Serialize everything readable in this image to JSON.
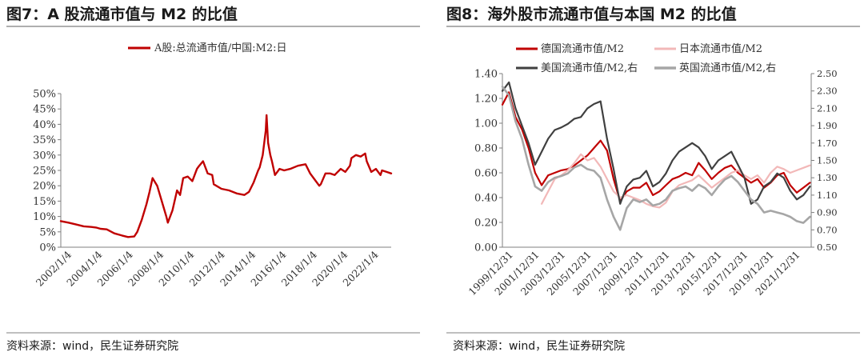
{
  "charts": [
    {
      "panel_title": "图7：A 股流通市值与 M2 的比值",
      "source": "资料来源：wind，民生证券研究院",
      "chart_data": {
        "type": "line",
        "title": "",
        "xlabel": "",
        "ylabel": "",
        "ylim": [
          0,
          0.5
        ],
        "y_ticks": [
          "0%",
          "5%",
          "10%",
          "15%",
          "20%",
          "25%",
          "30%",
          "35%",
          "40%",
          "45%",
          "50%"
        ],
        "x_ticks": [
          "2002/1/4",
          "2004/1/4",
          "2006/1/4",
          "2008/1/4",
          "2010/1/4",
          "2012/1/4",
          "2014/1/4",
          "2016/1/4",
          "2018/1/4",
          "2020/1/4",
          "2022/1/4"
        ],
        "xlim": [
          2002.0,
          2023.6
        ],
        "legend": "top",
        "grid": false,
        "series": [
          {
            "name": "A股:总流通市值/中国:M2:日",
            "color": "#c00000",
            "x": [
              2002.0,
              2002.5,
              2003.0,
              2003.5,
              2004.0,
              2004.3,
              2004.6,
              2005.0,
              2005.5,
              2006.0,
              2006.4,
              2006.8,
              2007.0,
              2007.3,
              2007.6,
              2007.8,
              2008.0,
              2008.3,
              2008.6,
              2008.9,
              2009.0,
              2009.3,
              2009.6,
              2009.8,
              2010.0,
              2010.3,
              2010.6,
              2010.9,
              2011.0,
              2011.3,
              2011.6,
              2011.9,
              2012.0,
              2012.5,
              2013.0,
              2013.5,
              2014.0,
              2014.3,
              2014.6,
              2014.9,
              2015.0,
              2015.2,
              2015.4,
              2015.45,
              2015.55,
              2015.7,
              2015.8,
              2016.0,
              2016.3,
              2016.6,
              2017.0,
              2017.5,
              2018.0,
              2018.3,
              2018.6,
              2018.9,
              2019.0,
              2019.3,
              2019.6,
              2019.9,
              2020.0,
              2020.3,
              2020.6,
              2020.9,
              2021.0,
              2021.3,
              2021.6,
              2021.9,
              2022.0,
              2022.3,
              2022.6,
              2022.9,
              2023.0,
              2023.3,
              2023.6
            ],
            "values": [
              0.085,
              0.08,
              0.074,
              0.068,
              0.066,
              0.064,
              0.06,
              0.058,
              0.045,
              0.038,
              0.033,
              0.035,
              0.05,
              0.09,
              0.14,
              0.18,
              0.225,
              0.2,
              0.15,
              0.1,
              0.08,
              0.12,
              0.185,
              0.17,
              0.225,
              0.23,
              0.215,
              0.255,
              0.262,
              0.28,
              0.24,
              0.235,
              0.205,
              0.19,
              0.185,
              0.175,
              0.17,
              0.18,
              0.21,
              0.25,
              0.26,
              0.3,
              0.38,
              0.43,
              0.34,
              0.3,
              0.28,
              0.235,
              0.255,
              0.25,
              0.255,
              0.265,
              0.27,
              0.24,
              0.22,
              0.2,
              0.205,
              0.24,
              0.24,
              0.235,
              0.24,
              0.255,
              0.245,
              0.265,
              0.29,
              0.3,
              0.295,
              0.305,
              0.28,
              0.245,
              0.255,
              0.235,
              0.25,
              0.245,
              0.24
            ]
          }
        ]
      }
    },
    {
      "panel_title": "图8：海外股市流通市值与本国 M2 的比值",
      "source": "资料来源：wind，民生证券研究院",
      "chart_data": {
        "type": "line",
        "title": "",
        "xlabel": "",
        "ylabel": "",
        "ylim": [
          0,
          1.4
        ],
        "ylim_right": [
          0.5,
          2.5
        ],
        "y_ticks": [
          "0.00",
          "0.20",
          "0.40",
          "0.60",
          "0.80",
          "1.00",
          "1.20",
          "1.40"
        ],
        "y_ticks_right": [
          "0.50",
          "0.70",
          "0.90",
          "1.10",
          "1.30",
          "1.50",
          "1.70",
          "1.90",
          "2.10",
          "2.30",
          "2.50"
        ],
        "x_ticks": [
          "1999/12/31",
          "2001/12/31",
          "2003/12/31",
          "2005/12/31",
          "2007/12/31",
          "2009/12/31",
          "2011/12/31",
          "2013/12/31",
          "2015/12/31",
          "2017/12/31",
          "2019/12/31",
          "2021/12/31"
        ],
        "xlim": [
          2000.0,
          2023.6
        ],
        "legend": "top",
        "grid": false,
        "series": [
          {
            "name": "德国流通市值/M2",
            "axis": "left",
            "color": "#c00000",
            "width": 2.2,
            "x": [
              2000.0,
              2000.5,
              2001.0,
              2001.5,
              2002.0,
              2002.5,
              2003.0,
              2003.5,
              2004.0,
              2004.5,
              2005.0,
              2005.5,
              2006.0,
              2006.5,
              2007.0,
              2007.5,
              2008.0,
              2008.5,
              2009.0,
              2009.5,
              2010.0,
              2010.5,
              2011.0,
              2011.5,
              2012.0,
              2012.5,
              2013.0,
              2013.5,
              2014.0,
              2014.5,
              2015.0,
              2015.5,
              2016.0,
              2016.5,
              2017.0,
              2017.5,
              2018.0,
              2018.5,
              2019.0,
              2019.5,
              2020.0,
              2020.5,
              2021.0,
              2021.5,
              2022.0,
              2022.5,
              2023.0,
              2023.5
            ],
            "values": [
              1.15,
              1.25,
              1.05,
              0.95,
              0.8,
              0.6,
              0.5,
              0.58,
              0.6,
              0.62,
              0.63,
              0.66,
              0.7,
              0.74,
              0.8,
              0.86,
              0.78,
              0.55,
              0.37,
              0.45,
              0.48,
              0.48,
              0.52,
              0.42,
              0.45,
              0.5,
              0.55,
              0.57,
              0.6,
              0.58,
              0.68,
              0.62,
              0.55,
              0.6,
              0.64,
              0.66,
              0.6,
              0.56,
              0.52,
              0.55,
              0.48,
              0.52,
              0.58,
              0.6,
              0.5,
              0.44,
              0.48,
              0.52
            ]
          },
          {
            "name": "日本流通市值/M2",
            "axis": "left",
            "color": "#f2b8b8",
            "width": 2.2,
            "x": [
              2003.0,
              2003.5,
              2004.0,
              2004.5,
              2005.0,
              2005.5,
              2006.0,
              2006.5,
              2007.0,
              2007.5,
              2008.0,
              2008.5,
              2009.0,
              2009.5,
              2010.0,
              2010.5,
              2011.0,
              2011.5,
              2012.0,
              2012.5,
              2013.0,
              2013.5,
              2014.0,
              2014.5,
              2015.0,
              2015.5,
              2016.0,
              2016.5,
              2017.0,
              2017.5,
              2018.0,
              2018.5,
              2019.0,
              2019.5,
              2020.0,
              2020.5,
              2021.0,
              2021.5,
              2022.0,
              2022.5,
              2023.0,
              2023.5
            ],
            "values": [
              0.35,
              0.45,
              0.55,
              0.58,
              0.62,
              0.68,
              0.75,
              0.7,
              0.72,
              0.65,
              0.55,
              0.45,
              0.4,
              0.42,
              0.4,
              0.38,
              0.35,
              0.33,
              0.32,
              0.36,
              0.45,
              0.5,
              0.52,
              0.54,
              0.58,
              0.53,
              0.48,
              0.52,
              0.56,
              0.6,
              0.62,
              0.58,
              0.55,
              0.58,
              0.52,
              0.6,
              0.65,
              0.63,
              0.6,
              0.62,
              0.64,
              0.66
            ]
          },
          {
            "name": "美国流通市值/M2,右",
            "axis": "right",
            "color": "#404040",
            "width": 2.2,
            "x": [
              2000.0,
              2000.5,
              2001.0,
              2001.5,
              2002.0,
              2002.5,
              2003.0,
              2003.5,
              2004.0,
              2004.5,
              2005.0,
              2005.5,
              2006.0,
              2006.5,
              2007.0,
              2007.5,
              2008.0,
              2008.5,
              2009.0,
              2009.5,
              2010.0,
              2010.5,
              2011.0,
              2011.5,
              2012.0,
              2012.5,
              2013.0,
              2013.5,
              2014.0,
              2014.5,
              2015.0,
              2015.5,
              2016.0,
              2016.5,
              2017.0,
              2017.5,
              2018.0,
              2018.5,
              2019.0,
              2019.5,
              2020.0,
              2020.5,
              2021.0,
              2021.5,
              2022.0,
              2022.5,
              2023.0,
              2023.5
            ],
            "values": [
              2.3,
              2.4,
              2.1,
              1.9,
              1.7,
              1.45,
              1.6,
              1.75,
              1.85,
              1.88,
              1.92,
              1.98,
              2.0,
              2.1,
              2.15,
              2.18,
              1.75,
              1.4,
              1.0,
              1.2,
              1.28,
              1.3,
              1.38,
              1.2,
              1.25,
              1.35,
              1.5,
              1.6,
              1.65,
              1.7,
              1.65,
              1.55,
              1.4,
              1.5,
              1.55,
              1.6,
              1.45,
              1.3,
              1.0,
              1.05,
              1.2,
              1.25,
              1.35,
              1.3,
              1.15,
              1.05,
              1.1,
              1.2
            ]
          },
          {
            "name": "英国流通市值/M2,右",
            "axis": "right",
            "color": "#a6a6a6",
            "width": 2.6,
            "x": [
              2000.0,
              2000.5,
              2001.0,
              2001.5,
              2002.0,
              2002.5,
              2003.0,
              2003.5,
              2004.0,
              2004.5,
              2005.0,
              2005.5,
              2006.0,
              2006.5,
              2007.0,
              2007.5,
              2008.0,
              2008.5,
              2009.0,
              2009.5,
              2010.0,
              2010.5,
              2011.0,
              2011.5,
              2012.0,
              2012.5,
              2013.0,
              2013.5,
              2014.0,
              2014.5,
              2015.0,
              2015.5,
              2016.0,
              2016.5,
              2017.0,
              2017.5,
              2018.0,
              2018.5,
              2019.0,
              2019.5,
              2020.0,
              2020.5,
              2021.0,
              2021.5,
              2022.0,
              2022.5,
              2023.0,
              2023.5
            ],
            "values": [
              2.35,
              2.25,
              1.95,
              1.75,
              1.45,
              1.2,
              1.15,
              1.25,
              1.3,
              1.32,
              1.35,
              1.42,
              1.45,
              1.4,
              1.38,
              1.3,
              1.05,
              0.85,
              0.7,
              0.95,
              1.05,
              1.02,
              1.05,
              0.98,
              1.0,
              1.05,
              1.15,
              1.18,
              1.2,
              1.15,
              1.22,
              1.18,
              1.1,
              1.2,
              1.28,
              1.32,
              1.25,
              1.15,
              1.05,
              1.0,
              0.9,
              0.92,
              0.9,
              0.88,
              0.85,
              0.8,
              0.78,
              0.85
            ]
          }
        ]
      }
    }
  ]
}
